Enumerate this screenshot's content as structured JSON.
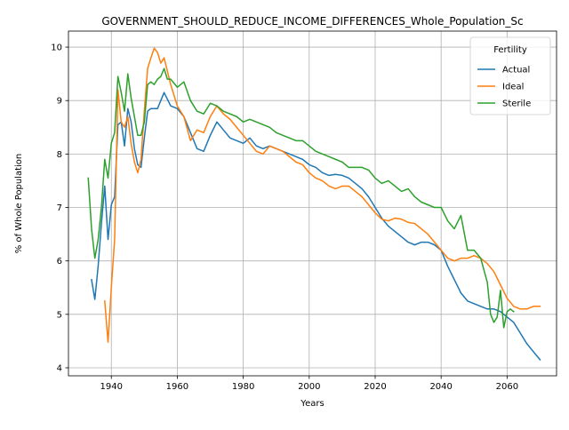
{
  "chart_data": {
    "type": "line",
    "title": "GOVERNMENT_SHOULD_REDUCE_INCOME_DIFFERENCES_Whole_Population_Sc",
    "xlabel": "Years",
    "ylabel": "% of Whole Population",
    "xlim": [
      1927,
      2075
    ],
    "ylim": [
      3.85,
      10.3
    ],
    "xticks": [
      1940,
      1960,
      1980,
      2000,
      2020,
      2040,
      2060
    ],
    "yticks": [
      4,
      5,
      6,
      7,
      8,
      9,
      10
    ],
    "grid": true,
    "legend": {
      "title": "Fertility",
      "placement": "top-right"
    },
    "series": [
      {
        "name": "Actual",
        "color": "#1f77b4",
        "x": [
          1934,
          1935,
          1936,
          1937,
          1938,
          1939,
          1940,
          1941,
          1942,
          1943,
          1944,
          1945,
          1946,
          1947,
          1948,
          1949,
          1950,
          1951,
          1952,
          1954,
          1956,
          1958,
          1960,
          1962,
          1964,
          1966,
          1968,
          1970,
          1972,
          1974,
          1976,
          1978,
          1980,
          1982,
          1984,
          1986,
          1988,
          1990,
          1992,
          1994,
          1996,
          1998,
          2000,
          2002,
          2004,
          2006,
          2008,
          2010,
          2012,
          2014,
          2016,
          2018,
          2020,
          2022,
          2024,
          2026,
          2028,
          2030,
          2032,
          2034,
          2036,
          2038,
          2040,
          2042,
          2044,
          2046,
          2048,
          2050,
          2052,
          2054,
          2056,
          2058,
          2060,
          2062,
          2064,
          2066,
          2068,
          2070
        ],
        "y": [
          5.65,
          5.28,
          5.9,
          6.7,
          7.4,
          6.4,
          7.05,
          7.2,
          8.55,
          8.6,
          8.15,
          8.85,
          8.6,
          8.1,
          7.8,
          7.75,
          8.3,
          8.8,
          8.85,
          8.85,
          9.15,
          8.9,
          8.85,
          8.7,
          8.4,
          8.1,
          8.05,
          8.35,
          8.6,
          8.45,
          8.3,
          8.25,
          8.2,
          8.3,
          8.15,
          8.1,
          8.15,
          8.1,
          8.05,
          8.0,
          7.95,
          7.9,
          7.8,
          7.75,
          7.65,
          7.6,
          7.62,
          7.6,
          7.55,
          7.45,
          7.35,
          7.2,
          7.0,
          6.8,
          6.65,
          6.55,
          6.45,
          6.35,
          6.3,
          6.35,
          6.35,
          6.3,
          6.2,
          5.9,
          5.65,
          5.4,
          5.25,
          5.2,
          5.15,
          5.1,
          5.1,
          5.05,
          4.95,
          4.85,
          4.65,
          4.45,
          4.3,
          4.15
        ]
      },
      {
        "name": "Ideal",
        "color": "#ff7f0e",
        "x": [
          1938,
          1939,
          1940,
          1941,
          1942,
          1943,
          1944,
          1945,
          1946,
          1947,
          1948,
          1949,
          1950,
          1951,
          1952,
          1953,
          1954,
          1955,
          1956,
          1958,
          1960,
          1962,
          1964,
          1966,
          1968,
          1970,
          1972,
          1974,
          1976,
          1978,
          1980,
          1982,
          1984,
          1986,
          1988,
          1990,
          1992,
          1994,
          1996,
          1998,
          2000,
          2002,
          2004,
          2006,
          2008,
          2010,
          2012,
          2014,
          2016,
          2018,
          2020,
          2022,
          2024,
          2026,
          2028,
          2030,
          2032,
          2034,
          2036,
          2038,
          2040,
          2042,
          2044,
          2046,
          2048,
          2050,
          2052,
          2054,
          2056,
          2058,
          2060,
          2062,
          2064,
          2066,
          2068,
          2070
        ],
        "y": [
          5.25,
          4.48,
          5.5,
          6.4,
          9.2,
          8.6,
          8.5,
          8.7,
          8.2,
          7.85,
          7.65,
          7.9,
          8.8,
          9.6,
          9.8,
          9.98,
          9.9,
          9.7,
          9.8,
          9.3,
          8.9,
          8.7,
          8.25,
          8.45,
          8.4,
          8.7,
          8.9,
          8.75,
          8.65,
          8.5,
          8.35,
          8.2,
          8.05,
          8.0,
          8.15,
          8.1,
          8.05,
          7.95,
          7.85,
          7.8,
          7.65,
          7.55,
          7.5,
          7.4,
          7.35,
          7.4,
          7.4,
          7.3,
          7.2,
          7.05,
          6.9,
          6.78,
          6.75,
          6.8,
          6.78,
          6.72,
          6.7,
          6.6,
          6.5,
          6.35,
          6.2,
          6.05,
          6.0,
          6.05,
          6.05,
          6.1,
          6.05,
          5.95,
          5.8,
          5.55,
          5.3,
          5.15,
          5.1,
          5.1,
          5.15,
          5.15
        ]
      },
      {
        "name": "Sterile",
        "color": "#2ca02c",
        "x": [
          1933,
          1934,
          1935,
          1936,
          1937,
          1938,
          1939,
          1940,
          1941,
          1942,
          1943,
          1944,
          1945,
          1946,
          1947,
          1948,
          1949,
          1950,
          1951,
          1952,
          1953,
          1954,
          1955,
          1956,
          1957,
          1958,
          1960,
          1962,
          1964,
          1966,
          1968,
          1970,
          1972,
          1974,
          1976,
          1978,
          1980,
          1982,
          1984,
          1986,
          1988,
          1990,
          1992,
          1994,
          1996,
          1998,
          2000,
          2002,
          2004,
          2006,
          2008,
          2010,
          2012,
          2014,
          2016,
          2018,
          2020,
          2022,
          2024,
          2026,
          2028,
          2030,
          2032,
          2034,
          2036,
          2038,
          2040,
          2042,
          2044,
          2046,
          2048,
          2050,
          2052,
          2054,
          2055,
          2056,
          2057,
          2058,
          2059,
          2060,
          2061,
          2062
        ],
        "y": [
          7.55,
          6.6,
          6.05,
          6.4,
          7.0,
          7.9,
          7.55,
          8.2,
          8.4,
          9.45,
          9.15,
          8.8,
          9.5,
          9.05,
          8.7,
          8.35,
          8.35,
          8.6,
          9.3,
          9.35,
          9.3,
          9.4,
          9.45,
          9.6,
          9.4,
          9.4,
          9.25,
          9.35,
          9.0,
          8.8,
          8.75,
          8.95,
          8.9,
          8.8,
          8.75,
          8.7,
          8.6,
          8.65,
          8.6,
          8.55,
          8.5,
          8.4,
          8.35,
          8.3,
          8.25,
          8.25,
          8.15,
          8.05,
          8.0,
          7.95,
          7.9,
          7.85,
          7.75,
          7.75,
          7.75,
          7.7,
          7.55,
          7.45,
          7.5,
          7.4,
          7.3,
          7.35,
          7.2,
          7.1,
          7.05,
          7.0,
          7.0,
          6.75,
          6.6,
          6.85,
          6.2,
          6.2,
          6.05,
          5.6,
          5.0,
          4.85,
          4.95,
          5.45,
          4.75,
          5.05,
          5.1,
          5.05
        ]
      }
    ]
  }
}
